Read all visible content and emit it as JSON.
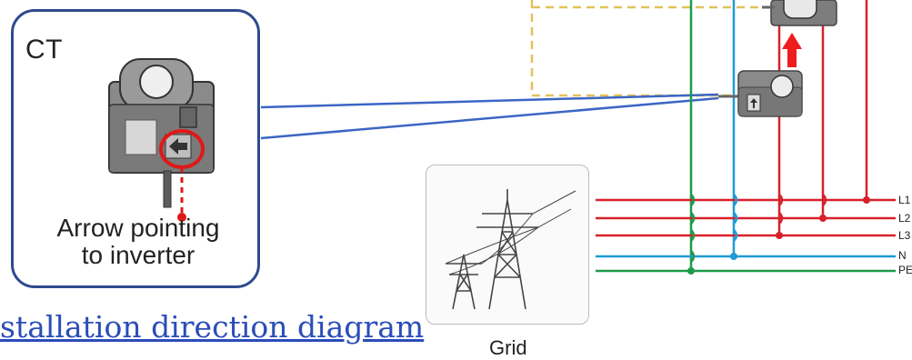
{
  "ct_panel": {
    "title": "CT",
    "caption_line1": "Arrow pointing",
    "caption_line2": "to inverter"
  },
  "grid": {
    "label": "Grid"
  },
  "diagram_title": "stallation direction diagram",
  "lines": {
    "l1": "L1",
    "l2": "L2",
    "l3": "L3",
    "n": "N",
    "pe": "PE"
  },
  "colors": {
    "panel_border": "#2e4a8f",
    "phase_red": "#d8202a",
    "neutral_blue": "#1f9bd7",
    "earth_green": "#1e9a4a",
    "dashed_yellow": "#e2c15a",
    "connector_blue": "#3b66c4",
    "arrow_red": "#ee1c1c",
    "title_blue": "#2a4db8"
  }
}
